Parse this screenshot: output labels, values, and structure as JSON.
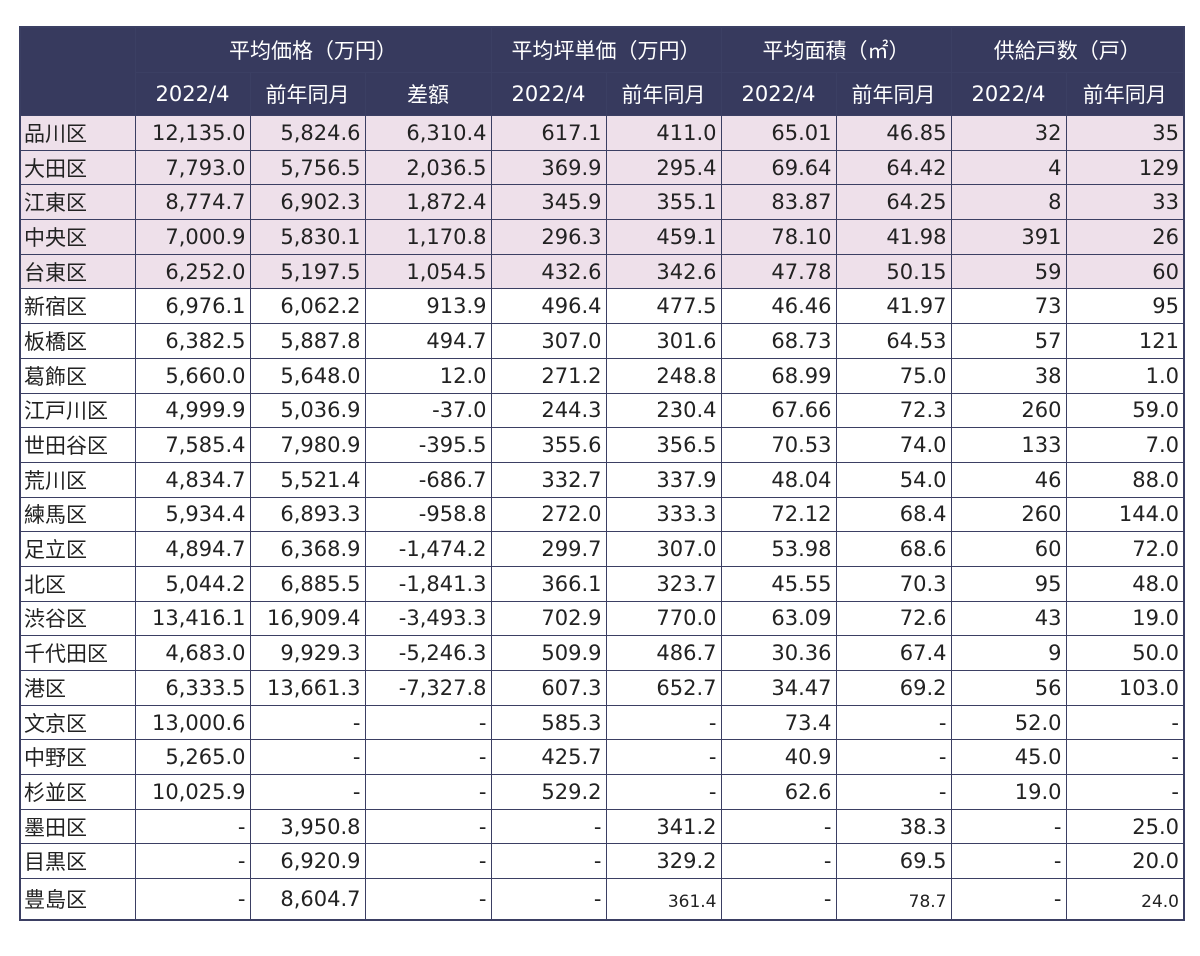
{
  "headers": {
    "corner": "",
    "groups": [
      "平均価格（万円）",
      "平均坪単価（万円）",
      "平均面積（㎡）",
      "供給戸数（戸）"
    ],
    "price_sub": [
      "2022/4",
      "前年同月",
      "差額"
    ],
    "tsubo_sub": [
      "2022/4",
      "前年同月"
    ],
    "area_sub": [
      "2022/4",
      "前年同月"
    ],
    "units_sub": [
      "2022/4",
      "前年同月"
    ]
  },
  "rows": [
    {
      "name": "品川区",
      "highlight": true,
      "cells": [
        "12,135.0",
        "5,824.6",
        "6,310.4",
        "617.1",
        "411.0",
        "65.01",
        "46.85",
        "32",
        "35"
      ]
    },
    {
      "name": "大田区",
      "highlight": true,
      "cells": [
        "7,793.0",
        "5,756.5",
        "2,036.5",
        "369.9",
        "295.4",
        "69.64",
        "64.42",
        "4",
        "129"
      ]
    },
    {
      "name": "江東区",
      "highlight": true,
      "cells": [
        "8,774.7",
        "6,902.3",
        "1,872.4",
        "345.9",
        "355.1",
        "83.87",
        "64.25",
        "8",
        "33"
      ]
    },
    {
      "name": "中央区",
      "highlight": true,
      "cells": [
        "7,000.9",
        "5,830.1",
        "1,170.8",
        "296.3",
        "459.1",
        "78.10",
        "41.98",
        "391",
        "26"
      ]
    },
    {
      "name": "台東区",
      "highlight": true,
      "cells": [
        "6,252.0",
        "5,197.5",
        "1,054.5",
        "432.6",
        "342.6",
        "47.78",
        "50.15",
        "59",
        "60"
      ]
    },
    {
      "name": "新宿区",
      "highlight": false,
      "cells": [
        "6,976.1",
        "6,062.2",
        "913.9",
        "496.4",
        "477.5",
        "46.46",
        "41.97",
        "73",
        "95"
      ]
    },
    {
      "name": "板橋区",
      "highlight": false,
      "cells": [
        "6,382.5",
        "5,887.8",
        "494.7",
        "307.0",
        "301.6",
        "68.73",
        "64.53",
        "57",
        "121"
      ]
    },
    {
      "name": "葛飾区",
      "highlight": false,
      "cells": [
        "5,660.0",
        "5,648.0",
        "12.0",
        "271.2",
        "248.8",
        "68.99",
        "75.0",
        "38",
        "1.0"
      ]
    },
    {
      "name": "江戸川区",
      "highlight": false,
      "cells": [
        "4,999.9",
        "5,036.9",
        "-37.0",
        "244.3",
        "230.4",
        "67.66",
        "72.3",
        "260",
        "59.0"
      ]
    },
    {
      "name": "世田谷区",
      "highlight": false,
      "cells": [
        "7,585.4",
        "7,980.9",
        "-395.5",
        "355.6",
        "356.5",
        "70.53",
        "74.0",
        "133",
        "7.0"
      ]
    },
    {
      "name": "荒川区",
      "highlight": false,
      "cells": [
        "4,834.7",
        "5,521.4",
        "-686.7",
        "332.7",
        "337.9",
        "48.04",
        "54.0",
        "46",
        "88.0"
      ]
    },
    {
      "name": "練馬区",
      "highlight": false,
      "cells": [
        "5,934.4",
        "6,893.3",
        "-958.8",
        "272.0",
        "333.3",
        "72.12",
        "68.4",
        "260",
        "144.0"
      ]
    },
    {
      "name": "足立区",
      "highlight": false,
      "cells": [
        "4,894.7",
        "6,368.9",
        "-1,474.2",
        "299.7",
        "307.0",
        "53.98",
        "68.6",
        "60",
        "72.0"
      ]
    },
    {
      "name": "北区",
      "highlight": false,
      "cells": [
        "5,044.2",
        "6,885.5",
        "-1,841.3",
        "366.1",
        "323.7",
        "45.55",
        "70.3",
        "95",
        "48.0"
      ]
    },
    {
      "name": "渋谷区",
      "highlight": false,
      "cells": [
        "13,416.1",
        "16,909.4",
        "-3,493.3",
        "702.9",
        "770.0",
        "63.09",
        "72.6",
        "43",
        "19.0"
      ]
    },
    {
      "name": "千代田区",
      "highlight": false,
      "cells": [
        "4,683.0",
        "9,929.3",
        "-5,246.3",
        "509.9",
        "486.7",
        "30.36",
        "67.4",
        "9",
        "50.0"
      ]
    },
    {
      "name": "港区",
      "highlight": false,
      "cells": [
        "6,333.5",
        "13,661.3",
        "-7,327.8",
        "607.3",
        "652.7",
        "34.47",
        "69.2",
        "56",
        "103.0"
      ]
    },
    {
      "name": "文京区",
      "highlight": false,
      "cells": [
        "13,000.6",
        "-",
        "-",
        "585.3",
        "-",
        "73.4",
        "-",
        "52.0",
        "-"
      ]
    },
    {
      "name": "中野区",
      "highlight": false,
      "cells": [
        "5,265.0",
        "-",
        "-",
        "425.7",
        "-",
        "40.9",
        "-",
        "45.0",
        "-"
      ]
    },
    {
      "name": "杉並区",
      "highlight": false,
      "cells": [
        "10,025.9",
        "-",
        "-",
        "529.2",
        "-",
        "62.6",
        "-",
        "19.0",
        "-"
      ]
    },
    {
      "name": "墨田区",
      "highlight": false,
      "cells": [
        "-",
        "3,950.8",
        "-",
        "-",
        "341.2",
        "-",
        "38.3",
        "-",
        "25.0"
      ]
    },
    {
      "name": "目黒区",
      "highlight": false,
      "cells": [
        "-",
        "6,920.9",
        "-",
        "-",
        "329.2",
        "-",
        "69.5",
        "-",
        "20.0"
      ]
    },
    {
      "name": "豊島区",
      "highlight": false,
      "cells": [
        "-",
        "8,604.7",
        "-",
        "-",
        "361.4",
        "-",
        "78.7",
        "-",
        "24.0"
      ]
    }
  ],
  "colors": {
    "header_bg": "#373a5e",
    "highlight_bg": "#eee0ea",
    "border": "#3b3f63"
  }
}
